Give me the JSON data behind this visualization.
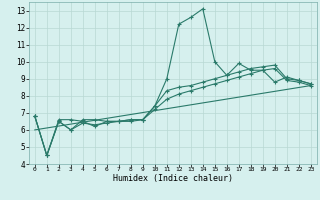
{
  "title": "",
  "xlabel": "Humidex (Indice chaleur)",
  "ylabel": "",
  "bg_color": "#d6f0ee",
  "grid_color": "#b8d8d4",
  "line_color": "#2a7a6a",
  "xlim": [
    -0.5,
    23.5
  ],
  "ylim": [
    4,
    13.5
  ],
  "xticks": [
    0,
    1,
    2,
    3,
    4,
    5,
    6,
    7,
    8,
    9,
    10,
    11,
    12,
    13,
    14,
    15,
    16,
    17,
    18,
    19,
    20,
    21,
    22,
    23
  ],
  "yticks": [
    4,
    5,
    6,
    7,
    8,
    9,
    10,
    11,
    12,
    13
  ],
  "line1_x": [
    0,
    1,
    2,
    3,
    4,
    5,
    6,
    7,
    8,
    9,
    10,
    11,
    12,
    13,
    14,
    15,
    16,
    17,
    18,
    19,
    20,
    21,
    22,
    23
  ],
  "line1_y": [
    6.8,
    4.5,
    6.6,
    6.6,
    6.5,
    6.2,
    6.5,
    6.5,
    6.6,
    6.6,
    7.4,
    9.0,
    12.2,
    12.6,
    13.1,
    10.0,
    9.2,
    9.9,
    9.5,
    9.5,
    8.8,
    9.1,
    8.9,
    8.7
  ],
  "line2_x": [
    0,
    1,
    2,
    3,
    4,
    5,
    6,
    7,
    8,
    9,
    10,
    11,
    12,
    13,
    14,
    15,
    16,
    17,
    18,
    19,
    20,
    21,
    22,
    23
  ],
  "line2_y": [
    6.8,
    4.5,
    6.5,
    6.0,
    6.6,
    6.6,
    6.5,
    6.5,
    6.6,
    6.6,
    7.4,
    8.3,
    8.5,
    8.6,
    8.8,
    9.0,
    9.2,
    9.4,
    9.6,
    9.7,
    9.8,
    9.0,
    8.9,
    8.7
  ],
  "line3_x": [
    0,
    1,
    2,
    3,
    4,
    5,
    6,
    7,
    8,
    9,
    10,
    11,
    12,
    13,
    14,
    15,
    16,
    17,
    18,
    19,
    20,
    21,
    22,
    23
  ],
  "line3_y": [
    6.8,
    4.5,
    6.5,
    6.0,
    6.4,
    6.3,
    6.4,
    6.5,
    6.5,
    6.6,
    7.2,
    7.8,
    8.1,
    8.3,
    8.5,
    8.7,
    8.9,
    9.1,
    9.3,
    9.5,
    9.6,
    8.9,
    8.8,
    8.6
  ],
  "line4_x": [
    0,
    23
  ],
  "line4_y": [
    6.0,
    8.6
  ]
}
